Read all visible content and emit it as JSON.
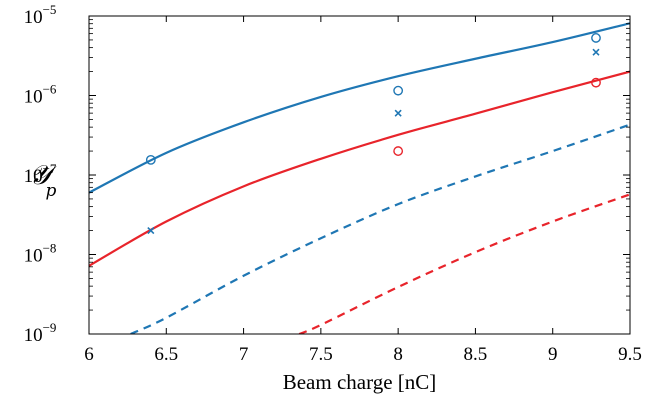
{
  "chart_data": {
    "type": "scatter",
    "xlabel": "Beam charge [nC]",
    "ylabel": "𝒴",
    "ylabel_sub": "p",
    "xlim": [
      6,
      9.5
    ],
    "ylim": [
      1e-09,
      1e-05
    ],
    "yscale": "log",
    "grid": false,
    "legend": "none",
    "x_ticks": [
      "6",
      "6.5",
      "7",
      "7.5",
      "8",
      "8.5",
      "9",
      "9.5"
    ],
    "y_ticks": [
      {
        "base": "10",
        "exp": "−5"
      },
      {
        "base": "10",
        "exp": "−6"
      },
      {
        "base": "10",
        "exp": "−7"
      },
      {
        "base": "10",
        "exp": "−8"
      },
      {
        "base": "10",
        "exp": "−9"
      }
    ],
    "series": [
      {
        "style": "solid",
        "color": "#1f77b4",
        "x": [
          6.0,
          6.5,
          7.0,
          7.5,
          8.0,
          8.5,
          9.0,
          9.5
        ],
        "y": [
          6e-08,
          1.9e-07,
          4.6e-07,
          9.6e-07,
          1.75e-06,
          2.9e-06,
          4.7e-06,
          8.1e-06
        ]
      },
      {
        "style": "solid",
        "color": "#e8242b",
        "x": [
          6.0,
          6.5,
          7.0,
          7.5,
          8.0,
          8.5,
          9.0,
          9.5
        ],
        "y": [
          7.2e-09,
          2.6e-08,
          7.2e-08,
          1.6e-07,
          3.2e-07,
          5.9e-07,
          1.1e-06,
          2e-06
        ]
      },
      {
        "style": "dashed",
        "color": "#1f77b4",
        "x": [
          6.27,
          6.5,
          7.0,
          7.5,
          8.0,
          8.5,
          9.0,
          9.5
        ],
        "y": [
          1e-09,
          1.6e-09,
          5.4e-09,
          1.6e-08,
          4.3e-08,
          9.6e-08,
          2e-07,
          4.3e-07
        ]
      },
      {
        "style": "dashed",
        "color": "#e8242b",
        "x": [
          7.36,
          7.5,
          8.0,
          8.5,
          9.0,
          9.5
        ],
        "y": [
          1e-09,
          1.3e-09,
          3.9e-09,
          1.07e-08,
          2.6e-08,
          5.7e-08
        ]
      },
      {
        "style": "circle",
        "color": "#1f77b4",
        "x": [
          6.4,
          8.0,
          9.28
        ],
        "y": [
          1.55e-07,
          1.15e-06,
          5.3e-06
        ]
      },
      {
        "style": "cross",
        "color": "#1f77b4",
        "x": [
          6.4,
          8.0,
          9.28
        ],
        "y": [
          2e-08,
          6e-07,
          3.5e-06
        ]
      },
      {
        "style": "circle",
        "color": "#e8242b",
        "x": [
          8.0,
          9.28
        ],
        "y": [
          2e-07,
          1.45e-06
        ]
      }
    ]
  }
}
